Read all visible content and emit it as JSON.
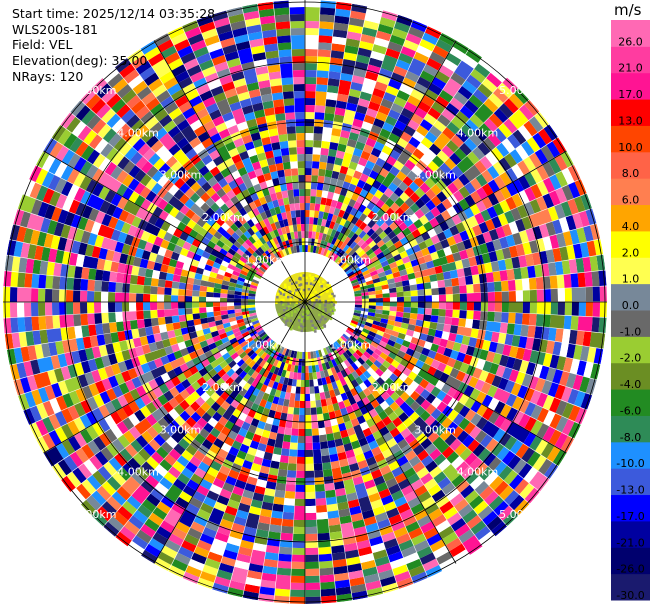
{
  "header": {
    "start_time": "Start time: 2025/12/14 03:35:28",
    "site": "WLS200s-181",
    "field": "Field: VEL",
    "elevation": "Elevation(deg): 35.00",
    "nrays": "NRays: 120"
  },
  "colorbar": {
    "unit": "m/s",
    "colors": [
      "#1a1a6e",
      "#00006e",
      "#0000a0",
      "#0000ff",
      "#3c5adc",
      "#1e90ff",
      "#2e8b57",
      "#228b22",
      "#6b8e23",
      "#9acd32",
      "#696969",
      "#778899",
      "#ffff50",
      "#ffff00",
      "#ffa500",
      "#ff7f50",
      "#ff6347",
      "#ff4500",
      "#ff0000",
      "#ff1493",
      "#ff3ca0",
      "#ff69b4"
    ],
    "tick_labels": [
      "-30.0",
      "-26.0",
      "-21.0",
      "-17.0",
      "-13.0",
      "-10.0",
      "-8.0",
      "-6.0",
      "-4.0",
      "-2.0",
      "-1.0",
      "0.0",
      "1.0",
      "2.0",
      "4.0",
      "6.0",
      "8.0",
      "10.0",
      "13.0",
      "17.0",
      "21.0",
      "26.0"
    ]
  },
  "chart_data": {
    "type": "heatmap",
    "projection": "polar-ppi",
    "field": "VEL",
    "unit": "m/s",
    "nrays": 120,
    "range_rings": [
      "1.00km",
      "2.00km",
      "3.00km",
      "4.00km",
      "5.00km"
    ],
    "value_range": [
      -30,
      30
    ],
    "near_range_km": 0.5
  }
}
